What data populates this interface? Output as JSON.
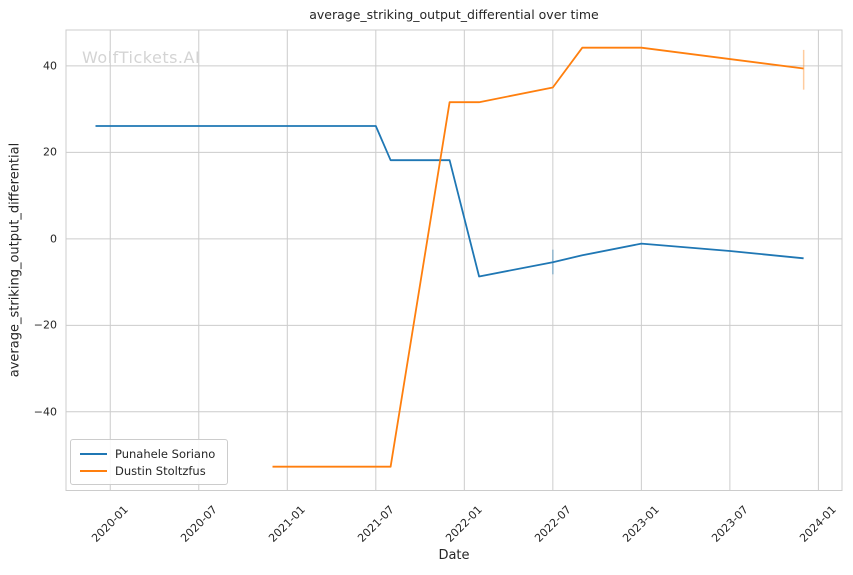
{
  "watermark": "WolfTickets.AI",
  "chart_data": {
    "type": "line",
    "title": "average_striking_output_differential over time",
    "xlabel": "Date",
    "ylabel": "average_striking_output_differential",
    "legend_position": "lower left",
    "grid": true,
    "background_color": "#ffffff",
    "grid_color": "#cccccc",
    "text_color": "#262626",
    "watermark_color": "#d4d4d4",
    "x_tick_labels": [
      "2020-01",
      "2020-07",
      "2021-01",
      "2021-07",
      "2022-01",
      "2022-07",
      "2023-01",
      "2023-07",
      "2024-01"
    ],
    "y_tick_values": [
      -40,
      -20,
      0,
      20,
      40
    ],
    "xlim_months": [
      -3.0,
      49.6
    ],
    "ylim": [
      -58.2,
      48.3
    ],
    "series": [
      {
        "name": "Punahele Soriano",
        "color": "#1f77b4",
        "points": [
          [
            "2019-12",
            26.1
          ],
          [
            "2021-07",
            26.1
          ],
          [
            "2021-08",
            18.2
          ],
          [
            "2021-12",
            18.2
          ],
          [
            "2022-02",
            -8.7
          ],
          [
            "2022-07",
            -5.4
          ],
          [
            "2022-09",
            -3.8
          ],
          [
            "2023-01",
            -1.1
          ],
          [
            "2023-07",
            -2.8
          ],
          [
            "2023-12",
            -4.5
          ]
        ]
      },
      {
        "name": "Dustin Stoltzfus",
        "color": "#ff7f0e",
        "points": [
          [
            "2020-12",
            -52.7
          ],
          [
            "2021-08",
            -52.7
          ],
          [
            "2021-12",
            31.6
          ],
          [
            "2022-02",
            31.6
          ],
          [
            "2022-07",
            35.0
          ],
          [
            "2022-09",
            44.2
          ],
          [
            "2023-01",
            44.2
          ],
          [
            "2023-12",
            39.4
          ]
        ]
      }
    ],
    "error_bars": [
      {
        "series": "Punahele Soriano",
        "x": "2022-07",
        "y_low": -8.2,
        "y_high": -2.5
      },
      {
        "series": "Dustin Stoltzfus",
        "x": "2023-12",
        "y_low": 34.5,
        "y_high": 43.7
      }
    ]
  }
}
